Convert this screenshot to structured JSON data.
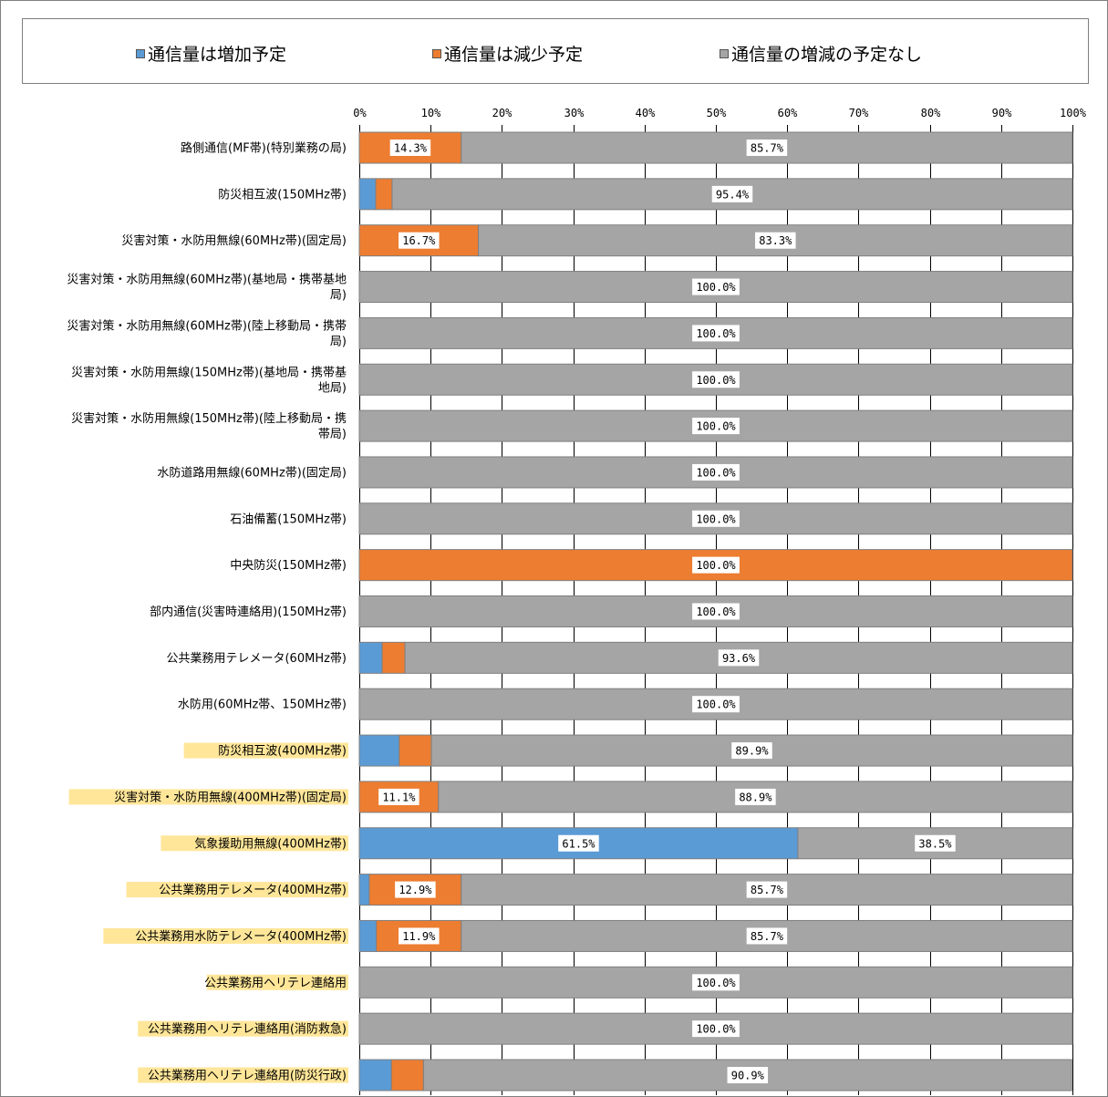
{
  "chart_data": {
    "type": "bar",
    "orientation": "horizontal",
    "stacked": true,
    "x_ticks": [
      "0%",
      "10%",
      "20%",
      "30%",
      "40%",
      "50%",
      "60%",
      "70%",
      "80%",
      "90%",
      "100%"
    ],
    "xlim": [
      0,
      100
    ],
    "grid": true,
    "legend_position": "top",
    "series": [
      {
        "name": "通信量は増加予定",
        "color": "#5b9bd5",
        "values": [
          0,
          2.3,
          0,
          0,
          0,
          0,
          0,
          0,
          0,
          0,
          0,
          3.2,
          0,
          5.6,
          0,
          61.5,
          1.4,
          2.4,
          0,
          0,
          4.5
        ]
      },
      {
        "name": "通信量は減少予定",
        "color": "#ed7d31",
        "values": [
          14.3,
          2.3,
          16.7,
          0,
          0,
          0,
          0,
          0,
          0,
          100,
          0,
          3.2,
          0,
          4.5,
          11.1,
          0,
          12.9,
          11.9,
          0,
          0,
          4.5
        ]
      },
      {
        "name": "通信量の増減の予定なし",
        "color": "#a5a5a5",
        "values": [
          85.7,
          95.4,
          83.3,
          100,
          100,
          100,
          100,
          100,
          100,
          0,
          100,
          93.6,
          100,
          89.9,
          88.9,
          38.5,
          85.7,
          85.7,
          100,
          100,
          90.9
        ]
      }
    ],
    "labels": [
      [
        null,
        "14.3%",
        "85.7%"
      ],
      [
        null,
        null,
        "95.4%"
      ],
      [
        null,
        "16.7%",
        "83.3%"
      ],
      [
        null,
        null,
        "100.0%"
      ],
      [
        null,
        null,
        "100.0%"
      ],
      [
        null,
        null,
        "100.0%"
      ],
      [
        null,
        null,
        "100.0%"
      ],
      [
        null,
        null,
        "100.0%"
      ],
      [
        null,
        null,
        "100.0%"
      ],
      [
        null,
        "100.0%",
        null
      ],
      [
        null,
        null,
        "100.0%"
      ],
      [
        null,
        null,
        "93.6%"
      ],
      [
        null,
        null,
        "100.0%"
      ],
      [
        null,
        null,
        "89.9%"
      ],
      [
        null,
        "11.1%",
        "88.9%"
      ],
      [
        "61.5%",
        null,
        "38.5%"
      ],
      [
        null,
        "12.9%",
        "85.7%"
      ],
      [
        null,
        "11.9%",
        "85.7%"
      ],
      [
        null,
        null,
        "100.0%"
      ],
      [
        null,
        null,
        "100.0%"
      ],
      [
        null,
        null,
        "90.9%"
      ]
    ],
    "categories": [
      {
        "lines": [
          "路側通信(MF帯)(特別業務の局)"
        ],
        "highlight": false
      },
      {
        "lines": [
          "防災相互波(150MHz帯)"
        ],
        "highlight": false
      },
      {
        "lines": [
          "災害対策・水防用無線(60MHz帯)(固定局)"
        ],
        "highlight": false
      },
      {
        "lines": [
          "災害対策・水防用無線(60MHz帯)(基地局・携帯基地",
          "局)"
        ],
        "highlight": false
      },
      {
        "lines": [
          "災害対策・水防用無線(60MHz帯)(陸上移動局・携帯",
          "局)"
        ],
        "highlight": false
      },
      {
        "lines": [
          "災害対策・水防用無線(150MHz帯)(基地局・携帯基",
          "地局)"
        ],
        "highlight": false
      },
      {
        "lines": [
          "災害対策・水防用無線(150MHz帯)(陸上移動局・携",
          "帯局)"
        ],
        "highlight": false
      },
      {
        "lines": [
          "水防道路用無線(60MHz帯)(固定局)"
        ],
        "highlight": false
      },
      {
        "lines": [
          "石油備蓄(150MHz帯)"
        ],
        "highlight": false
      },
      {
        "lines": [
          "中央防災(150MHz帯)"
        ],
        "highlight": false
      },
      {
        "lines": [
          "部内通信(災害時連絡用)(150MHz帯)"
        ],
        "highlight": false
      },
      {
        "lines": [
          "公共業務用テレメータ(60MHz帯)"
        ],
        "highlight": false
      },
      {
        "lines": [
          "水防用(60MHz帯、150MHz帯)"
        ],
        "highlight": false
      },
      {
        "lines": [
          "防災相互波(400MHz帯)"
        ],
        "highlight": true
      },
      {
        "lines": [
          "災害対策・水防用無線(400MHz帯)(固定局)"
        ],
        "highlight": true
      },
      {
        "lines": [
          "気象援助用無線(400MHz帯)"
        ],
        "highlight": true
      },
      {
        "lines": [
          "公共業務用テレメータ(400MHz帯)"
        ],
        "highlight": true
      },
      {
        "lines": [
          "公共業務用水防テレメータ(400MHz帯)"
        ],
        "highlight": true
      },
      {
        "lines": [
          "公共業務用ヘリテレ連絡用"
        ],
        "highlight": true
      },
      {
        "lines": [
          "公共業務用ヘリテレ連絡用(消防救急)"
        ],
        "highlight": true
      },
      {
        "lines": [
          "公共業務用ヘリテレ連絡用(防災行政)"
        ],
        "highlight": true
      }
    ],
    "highlight_color": "#ffe699",
    "bar_border_color": "#7f7f7f",
    "grid_color": "#000000"
  }
}
